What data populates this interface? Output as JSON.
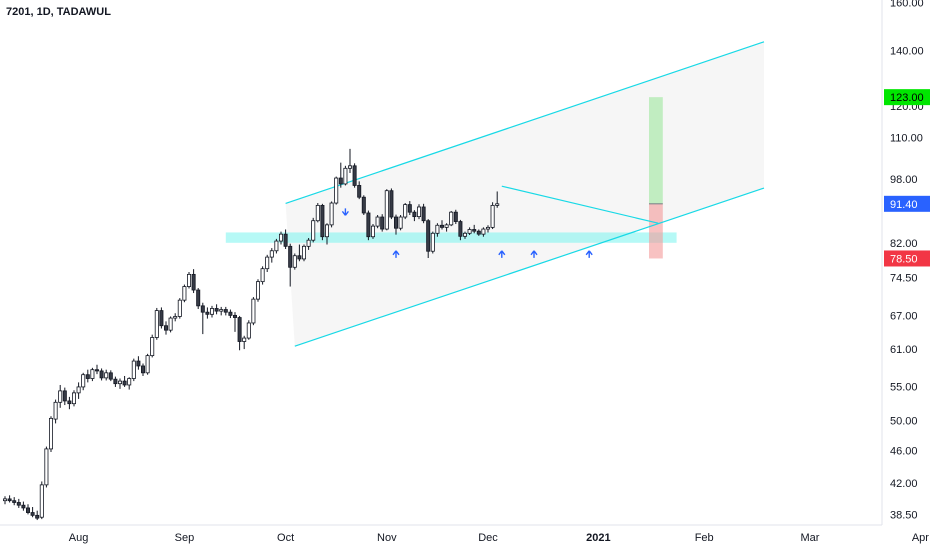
{
  "chart_data": {
    "type": "candlestick",
    "title": "7201, 1D, TADAWUL",
    "scale": "log",
    "ylim": [
      37.8,
      163
    ],
    "y_ticks": [
      160.0,
      140.0,
      120.0,
      110.0,
      98.0,
      88.0,
      82.0,
      74.5,
      67.0,
      61.0,
      55.0,
      50.0,
      46.0,
      42.0,
      38.5
    ],
    "y_tick_labels": [
      "160.00",
      "140.00",
      "120.00",
      "110.00",
      "98.00",
      "",
      "82.00",
      "74.50",
      "67.00",
      "61.00",
      "55.00",
      "50.00",
      "46.00",
      "42.00",
      "38.50"
    ],
    "x_labels": [
      {
        "label": "Aug",
        "bold": false
      },
      {
        "label": "Sep",
        "bold": false
      },
      {
        "label": "Oct",
        "bold": false
      },
      {
        "label": "Nov",
        "bold": false
      },
      {
        "label": "Dec",
        "bold": false
      },
      {
        "label": "2021",
        "bold": true
      },
      {
        "label": "Feb",
        "bold": false
      },
      {
        "label": "Mar",
        "bold": false
      },
      {
        "label": "Apr",
        "bold": false
      }
    ],
    "price_tags": [
      {
        "label": "123.00",
        "value": 123.0,
        "bg": "#00e600",
        "fg": "#000000"
      },
      {
        "label": "91.40",
        "value": 91.4,
        "bg": "#2962ff",
        "fg": "#ffffff"
      },
      {
        "label": "78.50",
        "value": 78.5,
        "bg": "#f23645",
        "fg": "#ffffff"
      }
    ],
    "candles": [
      [
        40.0,
        40.5,
        39.6,
        40.2
      ],
      [
        40.2,
        40.6,
        39.8,
        40.0
      ],
      [
        40.0,
        40.4,
        39.5,
        39.8
      ],
      [
        39.8,
        40.2,
        39.2,
        39.5
      ],
      [
        39.5,
        39.9,
        38.9,
        39.2
      ],
      [
        39.2,
        39.6,
        38.5,
        38.7
      ],
      [
        38.7,
        39.3,
        38.2,
        38.4
      ],
      [
        38.4,
        38.9,
        37.9,
        38.1
      ],
      [
        38.2,
        42.2,
        38.0,
        41.8
      ],
      [
        41.8,
        46.5,
        41.5,
        46.2
      ],
      [
        46.2,
        50.6,
        45.8,
        50.3
      ],
      [
        50.2,
        53.0,
        49.6,
        52.6
      ],
      [
        52.6,
        55.2,
        51.8,
        54.3
      ],
      [
        54.3,
        54.8,
        52.2,
        52.8
      ],
      [
        52.8,
        53.4,
        51.6,
        52.4
      ],
      [
        52.4,
        54.4,
        52.0,
        54.0
      ],
      [
        54.0,
        55.6,
        53.1,
        54.9
      ],
      [
        54.9,
        57.1,
        54.4,
        56.8
      ],
      [
        56.8,
        57.6,
        55.6,
        56.2
      ],
      [
        56.2,
        57.9,
        55.8,
        57.6
      ],
      [
        57.6,
        58.4,
        56.9,
        57.4
      ],
      [
        57.4,
        57.8,
        55.9,
        56.3
      ],
      [
        56.3,
        57.6,
        55.9,
        57.1
      ],
      [
        57.1,
        57.5,
        55.8,
        56.1
      ],
      [
        56.1,
        56.5,
        54.9,
        55.4
      ],
      [
        55.4,
        56.2,
        54.6,
        55.8
      ],
      [
        55.8,
        56.6,
        54.9,
        55.2
      ],
      [
        55.2,
        56.4,
        54.5,
        56.2
      ],
      [
        56.2,
        59.4,
        55.8,
        59.0
      ],
      [
        59.0,
        59.8,
        57.6,
        58.2
      ],
      [
        58.2,
        58.6,
        56.6,
        57.1
      ],
      [
        57.1,
        60.2,
        56.8,
        59.9
      ],
      [
        59.9,
        63.5,
        59.6,
        63.0
      ],
      [
        63.0,
        68.4,
        62.6,
        67.9
      ],
      [
        67.9,
        68.5,
        64.6,
        65.1
      ],
      [
        65.1,
        65.9,
        63.5,
        64.3
      ],
      [
        64.3,
        66.8,
        63.9,
        66.5
      ],
      [
        66.5,
        67.4,
        65.9,
        66.8
      ],
      [
        66.8,
        70.3,
        66.4,
        69.9
      ],
      [
        69.9,
        73.0,
        69.5,
        72.6
      ],
      [
        72.6,
        75.6,
        72.2,
        75.1
      ],
      [
        75.1,
        76.2,
        71.3,
        71.9
      ],
      [
        71.9,
        72.3,
        68.2,
        68.8
      ],
      [
        68.8,
        69.4,
        63.6,
        67.6
      ],
      [
        67.6,
        68.5,
        66.4,
        67.2
      ],
      [
        67.2,
        68.8,
        66.6,
        68.3
      ],
      [
        68.3,
        69.1,
        67.2,
        67.8
      ],
      [
        67.8,
        68.6,
        67.0,
        68.1
      ],
      [
        68.1,
        68.6,
        67.0,
        67.6
      ],
      [
        67.6,
        68.1,
        66.5,
        67.0
      ],
      [
        67.0,
        67.6,
        64.0,
        66.6
      ],
      [
        66.6,
        66.9,
        60.8,
        62.3
      ],
      [
        62.3,
        63.3,
        61.0,
        62.9
      ],
      [
        62.9,
        66.1,
        62.6,
        65.6
      ],
      [
        65.6,
        70.5,
        65.2,
        70.1
      ],
      [
        70.1,
        74.1,
        69.6,
        73.6
      ],
      [
        73.6,
        76.8,
        73.0,
        76.3
      ],
      [
        76.3,
        79.3,
        75.6,
        78.8
      ],
      [
        78.8,
        80.8,
        77.6,
        80.2
      ],
      [
        80.2,
        82.9,
        79.6,
        82.4
      ],
      [
        82.4,
        84.6,
        81.6,
        84.0
      ],
      [
        84.0,
        85.1,
        80.6,
        81.2
      ],
      [
        81.2,
        81.8,
        72.6,
        76.6
      ],
      [
        76.6,
        79.6,
        76.1,
        79.1
      ],
      [
        79.1,
        81.6,
        77.9,
        78.4
      ],
      [
        78.4,
        81.6,
        77.9,
        81.2
      ],
      [
        81.2,
        83.1,
        80.4,
        82.6
      ],
      [
        82.6,
        87.9,
        82.1,
        87.2
      ],
      [
        87.2,
        91.6,
        86.8,
        91.0
      ],
      [
        91.0,
        91.4,
        82.6,
        83.4
      ],
      [
        83.4,
        86.6,
        81.6,
        86.2
      ],
      [
        86.2,
        92.0,
        85.6,
        91.6
      ],
      [
        91.6,
        98.6,
        91.2,
        98.2
      ],
      [
        98.2,
        102.5,
        95.6,
        96.6
      ],
      [
        96.6,
        101.6,
        96.2,
        100.9
      ],
      [
        100.9,
        106.5,
        99.6,
        101.6
      ],
      [
        101.6,
        102.3,
        95.6,
        96.2
      ],
      [
        96.2,
        97.3,
        92.6,
        93.1
      ],
      [
        93.1,
        93.6,
        88.6,
        89.1
      ],
      [
        89.1,
        89.7,
        82.6,
        83.4
      ],
      [
        83.4,
        86.4,
        82.9,
        85.9
      ],
      [
        85.9,
        88.6,
        85.4,
        88.1
      ],
      [
        88.1,
        88.8,
        84.6,
        85.2
      ],
      [
        85.2,
        95.2,
        84.9,
        94.8
      ],
      [
        94.8,
        95.4,
        87.6,
        88.1
      ],
      [
        88.1,
        88.7,
        83.9,
        85.4
      ],
      [
        85.4,
        88.6,
        84.9,
        88.1
      ],
      [
        88.1,
        91.6,
        87.6,
        91.2
      ],
      [
        91.2,
        92.1,
        88.6,
        89.3
      ],
      [
        89.3,
        89.8,
        87.1,
        88.2
      ],
      [
        88.2,
        91.3,
        87.6,
        90.6
      ],
      [
        90.6,
        91.4,
        86.6,
        87.2
      ],
      [
        87.2,
        87.6,
        78.6,
        80.1
      ],
      [
        80.1,
        84.6,
        79.6,
        84.2
      ],
      [
        84.2,
        86.6,
        83.4,
        86.1
      ],
      [
        86.1,
        87.3,
        85.1,
        85.6
      ],
      [
        85.6,
        86.6,
        84.6,
        86.2
      ],
      [
        86.2,
        89.6,
        85.9,
        89.3
      ],
      [
        89.3,
        89.9,
        86.4,
        87.0
      ],
      [
        87.0,
        87.4,
        82.6,
        83.5
      ],
      [
        83.5,
        84.6,
        82.9,
        84.2
      ],
      [
        84.2,
        85.6,
        83.8,
        85.1
      ],
      [
        85.1,
        86.2,
        84.2,
        84.7
      ],
      [
        84.7,
        85.1,
        83.6,
        84.0
      ],
      [
        84.0,
        85.6,
        83.4,
        85.2
      ],
      [
        85.2,
        86.1,
        84.4,
        85.6
      ],
      [
        85.6,
        91.8,
        85.2,
        91.0
      ],
      [
        91.0,
        94.6,
        90.4,
        91.4
      ]
    ],
    "annotations": {
      "channel_upper": [
        [
          61,
          91.5
        ],
        [
          165,
          143.5
        ]
      ],
      "channel_lower": [
        [
          63,
          61.5
        ],
        [
          165,
          95.5
        ]
      ],
      "channel_midline_start": [
        [
          61,
          91.5
        ],
        [
          63,
          61.5
        ]
      ],
      "support_zone": {
        "from_index": 48,
        "to_index": 146,
        "low": 82.0,
        "high": 84.4
      },
      "triangle_upper": [
        [
          108,
          96.0
        ],
        [
          142,
          86.6
        ]
      ],
      "arrows_up": [
        90.0,
        105.0,
        113.0,
        125.0
      ],
      "arrow_down_index": 74
    },
    "long_position": {
      "entry": 91.4,
      "target": 123.0,
      "stop": 78.5,
      "from_index": 140,
      "to_index": 143
    },
    "date_labels_index": [
      16,
      39,
      61,
      83,
      105,
      129,
      152,
      175,
      199
    ]
  }
}
